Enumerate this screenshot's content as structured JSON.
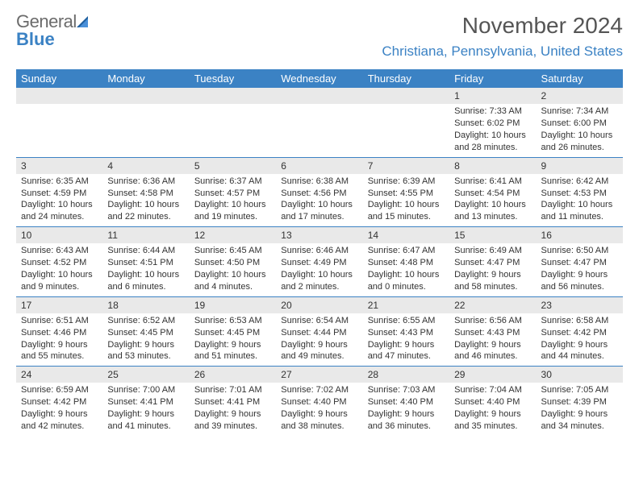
{
  "logo": {
    "gray": "General",
    "blue": "Blue"
  },
  "title": "November 2024",
  "location": "Christiana, Pennsylvania, United States",
  "colors": {
    "brand": "#3b82c4",
    "header_bg": "#3b82c4",
    "header_text": "#ffffff",
    "daynum_bg": "#e9e9e9",
    "text": "#333333",
    "title_text": "#555555"
  },
  "weekdays": [
    "Sunday",
    "Monday",
    "Tuesday",
    "Wednesday",
    "Thursday",
    "Friday",
    "Saturday"
  ],
  "weeks": [
    [
      null,
      null,
      null,
      null,
      null,
      {
        "n": "1",
        "sr": "7:33 AM",
        "ss": "6:02 PM",
        "dl": "10 hours and 28 minutes."
      },
      {
        "n": "2",
        "sr": "7:34 AM",
        "ss": "6:00 PM",
        "dl": "10 hours and 26 minutes."
      }
    ],
    [
      {
        "n": "3",
        "sr": "6:35 AM",
        "ss": "4:59 PM",
        "dl": "10 hours and 24 minutes."
      },
      {
        "n": "4",
        "sr": "6:36 AM",
        "ss": "4:58 PM",
        "dl": "10 hours and 22 minutes."
      },
      {
        "n": "5",
        "sr": "6:37 AM",
        "ss": "4:57 PM",
        "dl": "10 hours and 19 minutes."
      },
      {
        "n": "6",
        "sr": "6:38 AM",
        "ss": "4:56 PM",
        "dl": "10 hours and 17 minutes."
      },
      {
        "n": "7",
        "sr": "6:39 AM",
        "ss": "4:55 PM",
        "dl": "10 hours and 15 minutes."
      },
      {
        "n": "8",
        "sr": "6:41 AM",
        "ss": "4:54 PM",
        "dl": "10 hours and 13 minutes."
      },
      {
        "n": "9",
        "sr": "6:42 AM",
        "ss": "4:53 PM",
        "dl": "10 hours and 11 minutes."
      }
    ],
    [
      {
        "n": "10",
        "sr": "6:43 AM",
        "ss": "4:52 PM",
        "dl": "10 hours and 9 minutes."
      },
      {
        "n": "11",
        "sr": "6:44 AM",
        "ss": "4:51 PM",
        "dl": "10 hours and 6 minutes."
      },
      {
        "n": "12",
        "sr": "6:45 AM",
        "ss": "4:50 PM",
        "dl": "10 hours and 4 minutes."
      },
      {
        "n": "13",
        "sr": "6:46 AM",
        "ss": "4:49 PM",
        "dl": "10 hours and 2 minutes."
      },
      {
        "n": "14",
        "sr": "6:47 AM",
        "ss": "4:48 PM",
        "dl": "10 hours and 0 minutes."
      },
      {
        "n": "15",
        "sr": "6:49 AM",
        "ss": "4:47 PM",
        "dl": "9 hours and 58 minutes."
      },
      {
        "n": "16",
        "sr": "6:50 AM",
        "ss": "4:47 PM",
        "dl": "9 hours and 56 minutes."
      }
    ],
    [
      {
        "n": "17",
        "sr": "6:51 AM",
        "ss": "4:46 PM",
        "dl": "9 hours and 55 minutes."
      },
      {
        "n": "18",
        "sr": "6:52 AM",
        "ss": "4:45 PM",
        "dl": "9 hours and 53 minutes."
      },
      {
        "n": "19",
        "sr": "6:53 AM",
        "ss": "4:45 PM",
        "dl": "9 hours and 51 minutes."
      },
      {
        "n": "20",
        "sr": "6:54 AM",
        "ss": "4:44 PM",
        "dl": "9 hours and 49 minutes."
      },
      {
        "n": "21",
        "sr": "6:55 AM",
        "ss": "4:43 PM",
        "dl": "9 hours and 47 minutes."
      },
      {
        "n": "22",
        "sr": "6:56 AM",
        "ss": "4:43 PM",
        "dl": "9 hours and 46 minutes."
      },
      {
        "n": "23",
        "sr": "6:58 AM",
        "ss": "4:42 PM",
        "dl": "9 hours and 44 minutes."
      }
    ],
    [
      {
        "n": "24",
        "sr": "6:59 AM",
        "ss": "4:42 PM",
        "dl": "9 hours and 42 minutes."
      },
      {
        "n": "25",
        "sr": "7:00 AM",
        "ss": "4:41 PM",
        "dl": "9 hours and 41 minutes."
      },
      {
        "n": "26",
        "sr": "7:01 AM",
        "ss": "4:41 PM",
        "dl": "9 hours and 39 minutes."
      },
      {
        "n": "27",
        "sr": "7:02 AM",
        "ss": "4:40 PM",
        "dl": "9 hours and 38 minutes."
      },
      {
        "n": "28",
        "sr": "7:03 AM",
        "ss": "4:40 PM",
        "dl": "9 hours and 36 minutes."
      },
      {
        "n": "29",
        "sr": "7:04 AM",
        "ss": "4:40 PM",
        "dl": "9 hours and 35 minutes."
      },
      {
        "n": "30",
        "sr": "7:05 AM",
        "ss": "4:39 PM",
        "dl": "9 hours and 34 minutes."
      }
    ]
  ],
  "labels": {
    "sunrise": "Sunrise: ",
    "sunset": "Sunset: ",
    "daylight": "Daylight: "
  }
}
